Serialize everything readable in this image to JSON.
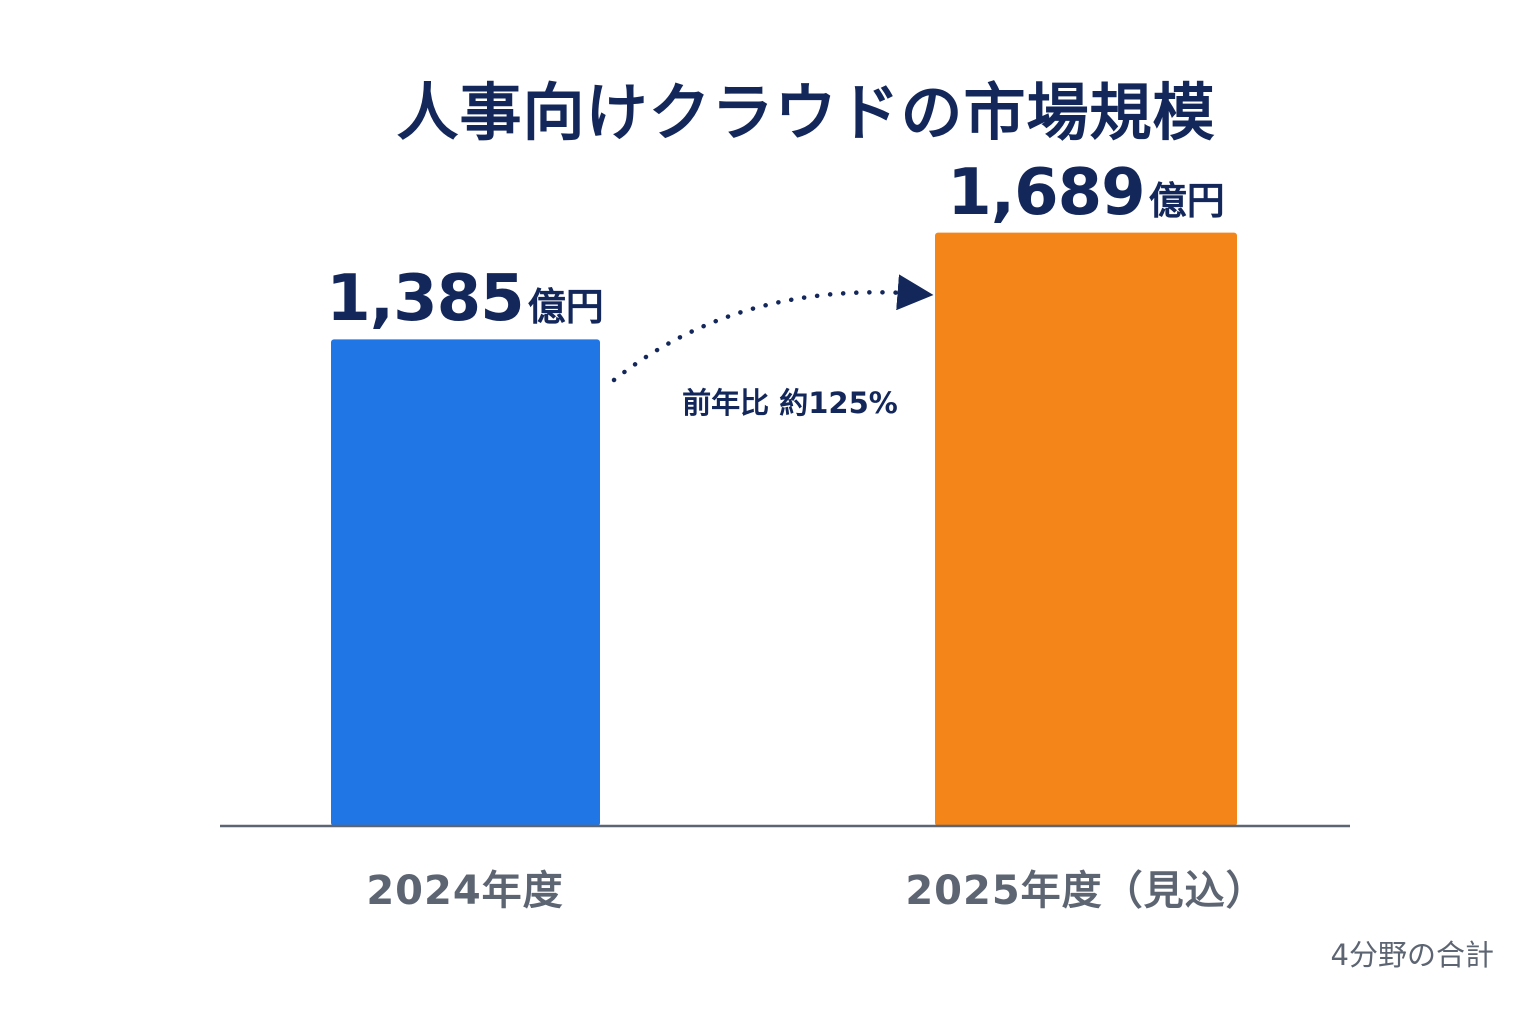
{
  "chart_data": {
    "type": "bar",
    "title": "人事向けクラウドの市場規模",
    "categories": [
      "2024年度",
      "2025年度（見込）"
    ],
    "values": [
      1385,
      1689
    ],
    "value_labels": [
      "1,385",
      "1,689"
    ],
    "unit": "億円",
    "colors": [
      "#2176e5",
      "#f38519"
    ],
    "ylim": [
      0,
      1850
    ],
    "grid": false,
    "legend": "none",
    "annotation": "前年比 約125%",
    "footnote": "4分野の合計",
    "annotation_color": "#13275a",
    "axis_color": "#5d6573"
  }
}
